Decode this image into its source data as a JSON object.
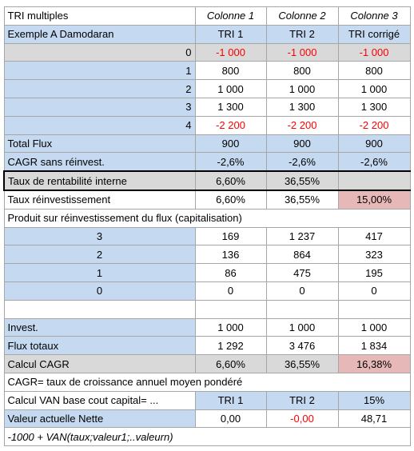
{
  "table": {
    "rows": [
      [
        "TRI multiples",
        "Colonne 1",
        "Colonne 2",
        "Colonne 3"
      ],
      [
        "Exemple A Damodaran",
        "TRI 1",
        "TRI 2",
        "TRI corrigé"
      ],
      [
        "0",
        "-1 000",
        "-1 000",
        "-1 000"
      ],
      [
        "1",
        "800",
        "800",
        "800"
      ],
      [
        "2",
        "1 000",
        "1 000",
        "1 000"
      ],
      [
        "3",
        "1 300",
        "1 300",
        "1 300"
      ],
      [
        "4",
        "-2 200",
        "-2 200",
        "-2 200"
      ],
      [
        "Total Flux",
        "900",
        "900",
        "900"
      ],
      [
        "CAGR sans réinvest.",
        "-2,6%",
        "-2,6%",
        "-2,6%"
      ],
      [
        "Taux de rentabilité interne",
        "6,60%",
        "36,55%"
      ],
      [
        "Taux réinvestissement",
        "6,60%",
        "36,55%",
        "15,00%"
      ],
      [
        "Produit sur réinvestissement du flux (capitalisation)"
      ],
      [
        "3",
        "169",
        "1 237",
        "417"
      ],
      [
        "2",
        "136",
        "864",
        "323"
      ],
      [
        "1",
        "86",
        "475",
        "195"
      ],
      [
        "0",
        "0",
        "0",
        "0"
      ],
      [],
      [
        "Invest.",
        "1 000",
        "1 000",
        "1 000"
      ],
      [
        "Flux totaux",
        "1 292",
        "3 476",
        "1 834"
      ],
      [
        "Calcul CAGR",
        "6,60%",
        "36,55%",
        "16,38%"
      ],
      [
        "CAGR= taux de croissance annuel moyen pondéré"
      ],
      [
        "Calcul VAN base cout capital= ...",
        "TRI 1",
        "TRI 2",
        "15%"
      ],
      [
        "Valeur actuelle Nette",
        "0,00",
        "-0,00",
        "48,71"
      ],
      [
        "-1000 + VAN(taux;valeur1;..valeurn)"
      ]
    ]
  }
}
